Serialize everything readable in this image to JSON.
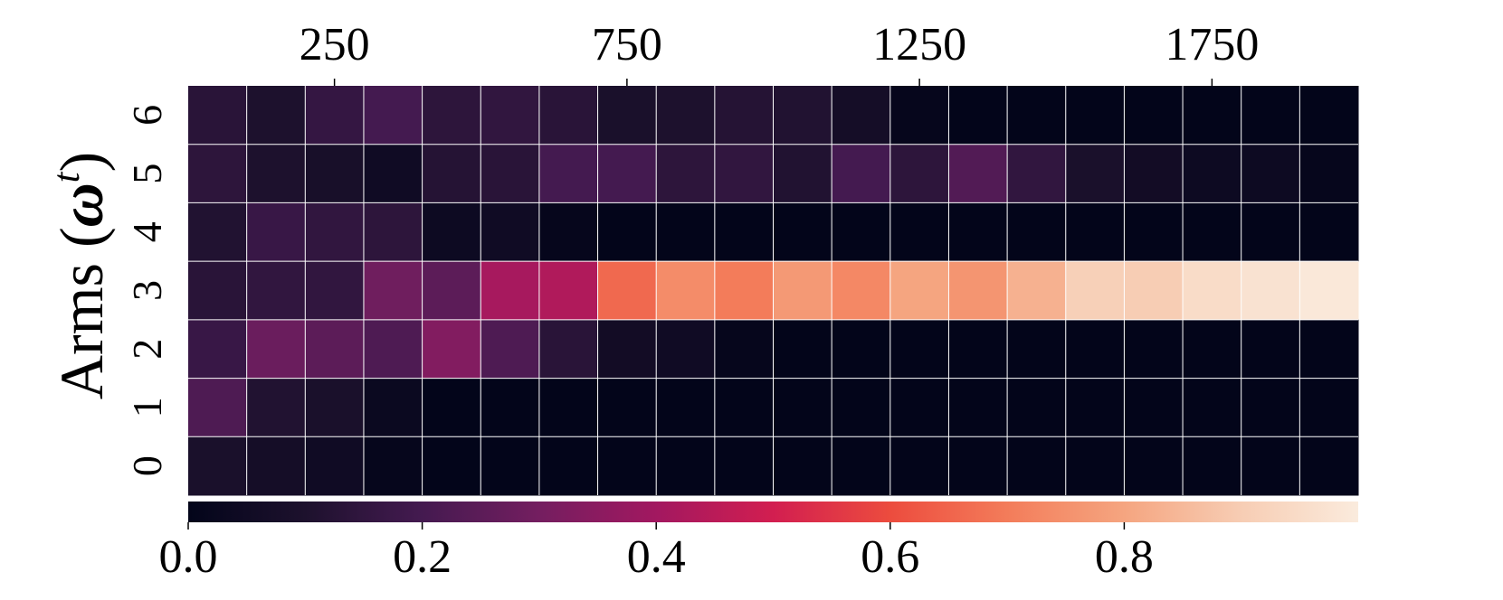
{
  "chart_data": {
    "type": "heatmap",
    "title": "",
    "ylabel_main": "Arms (",
    "ylabel_symbol": "ω",
    "ylabel_superscript": "t",
    "ylabel_close": ")",
    "x_tick_labels": [
      "250",
      "750",
      "1250",
      "1750"
    ],
    "x_tick_values": [
      250,
      750,
      1250,
      1750
    ],
    "x_range": [
      0,
      2000
    ],
    "x_bins": 20,
    "y_tick_labels": [
      "0",
      "1",
      "2",
      "3",
      "4",
      "5",
      "6"
    ],
    "colorbar": {
      "colormap": "rocket",
      "range": [
        0,
        1
      ],
      "tick_labels": [
        "0.0",
        "0.2",
        "0.4",
        "0.6",
        "0.8"
      ],
      "tick_values": [
        0.0,
        0.2,
        0.4,
        0.6,
        0.8
      ],
      "orientation": "horizontal"
    },
    "grid_line_color": "#ffffff",
    "rows": [
      {
        "arm": "6",
        "values": [
          0.13,
          0.1,
          0.16,
          0.2,
          0.14,
          0.15,
          0.13,
          0.09,
          0.1,
          0.12,
          0.11,
          0.07,
          0.01,
          0.0,
          0.0,
          0.0,
          0.0,
          0.0,
          0.0,
          0.0
        ]
      },
      {
        "arm": "5",
        "values": [
          0.14,
          0.1,
          0.08,
          0.05,
          0.12,
          0.13,
          0.2,
          0.2,
          0.14,
          0.15,
          0.11,
          0.2,
          0.14,
          0.23,
          0.15,
          0.09,
          0.06,
          0.04,
          0.04,
          0.01
        ]
      },
      {
        "arm": "4",
        "values": [
          0.11,
          0.17,
          0.15,
          0.14,
          0.04,
          0.05,
          0.01,
          0.0,
          0.0,
          0.0,
          0.0,
          0.0,
          0.0,
          0.0,
          0.0,
          0.0,
          0.0,
          0.0,
          0.0,
          0.0
        ]
      },
      {
        "arm": "3",
        "values": [
          0.13,
          0.15,
          0.15,
          0.29,
          0.25,
          0.41,
          0.43,
          0.66,
          0.74,
          0.7,
          0.77,
          0.73,
          0.8,
          0.76,
          0.83,
          0.91,
          0.9,
          0.95,
          0.97,
          0.99
        ]
      },
      {
        "arm": "2",
        "values": [
          0.17,
          0.28,
          0.25,
          0.22,
          0.33,
          0.22,
          0.13,
          0.06,
          0.05,
          0.01,
          0.0,
          0.0,
          0.0,
          0.0,
          0.0,
          0.0,
          0.0,
          0.0,
          0.0,
          0.0
        ]
      },
      {
        "arm": "1",
        "values": [
          0.22,
          0.11,
          0.09,
          0.03,
          0.0,
          0.0,
          0.0,
          0.0,
          0.0,
          0.0,
          0.0,
          0.0,
          0.0,
          0.0,
          0.0,
          0.0,
          0.0,
          0.0,
          0.0,
          0.0
        ]
      },
      {
        "arm": "0",
        "values": [
          0.09,
          0.07,
          0.05,
          0.01,
          0.0,
          0.0,
          0.0,
          0.0,
          0.0,
          0.0,
          0.0,
          0.0,
          0.0,
          0.0,
          0.0,
          0.0,
          0.0,
          0.0,
          0.0,
          0.0
        ]
      }
    ]
  }
}
